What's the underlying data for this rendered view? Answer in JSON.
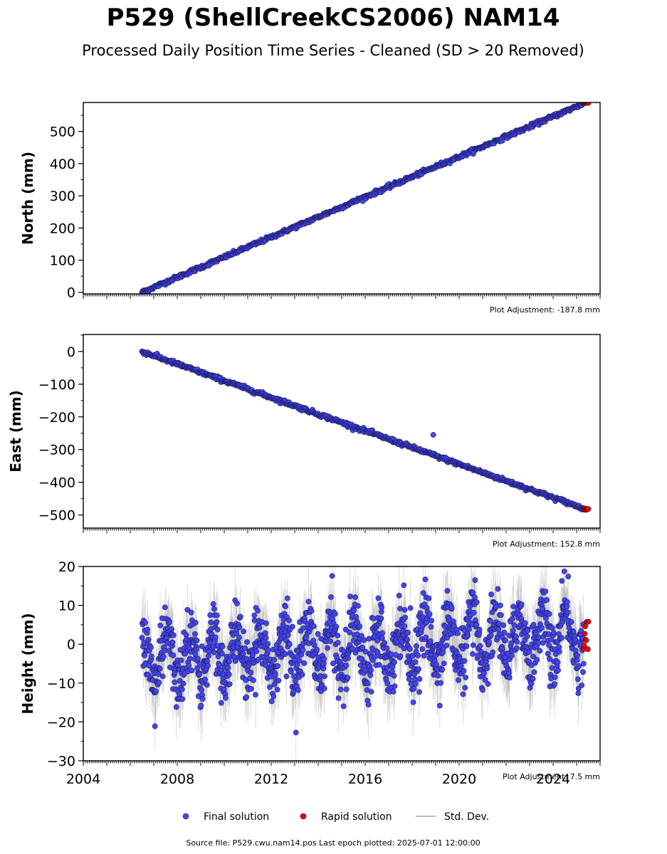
{
  "title": "P529 (ShellCreekCS2006) NAM14",
  "subtitle": "Processed Daily Position Time Series - Cleaned (SD > 20 Removed)",
  "footer": "Source file: P529.cwu.nam14.pos  Last epoch plotted: 2025-07-01 12:00:00",
  "colors": {
    "final": "#4444ee",
    "final_edge": "#1a1a55",
    "rapid": "#ee0000",
    "rapid_edge": "#550000",
    "stddev": "#bbbbbb"
  },
  "legend": {
    "final": "Final solution",
    "rapid": "Rapid solution",
    "stddev": "Std. Dev."
  },
  "chart_data": [
    {
      "type": "scatter",
      "ylabel": "North (mm)",
      "adjustment": "Plot Adjustment: -187.8 mm",
      "xlim": [
        2004,
        2026
      ],
      "ylim": [
        -5,
        590
      ],
      "yticks": [
        0,
        100,
        200,
        300,
        400,
        500
      ],
      "ytick_labels": [
        "0",
        "100",
        "200",
        "300",
        "400",
        "500"
      ],
      "final_series": {
        "start": [
          2006.5,
          0
        ],
        "end": [
          2025.3,
          587
        ],
        "scatter": 3,
        "outliers": []
      },
      "rapid_series": {
        "x_range": [
          2025.3,
          2025.5
        ],
        "y": 589
      }
    },
    {
      "type": "scatter",
      "ylabel": "East (mm)",
      "adjustment": "Plot Adjustment: 152.8 mm",
      "xlim": [
        2004,
        2026
      ],
      "ylim": [
        -540,
        52
      ],
      "yticks": [
        0,
        -100,
        -200,
        -300,
        -400,
        -500
      ],
      "ytick_labels": [
        "0",
        "−100",
        "−200",
        "−300",
        "−400",
        "−500"
      ],
      "final_series": {
        "start": [
          2006.5,
          0
        ],
        "end": [
          2025.3,
          -480
        ],
        "scatter": 3,
        "outliers": [
          [
            2018.9,
            -255
          ]
        ]
      },
      "rapid_series": {
        "x_range": [
          2025.3,
          2025.5
        ],
        "y": -482
      }
    },
    {
      "type": "scatter",
      "ylabel": "Height (mm)",
      "adjustment": "Plot Adjustment: 7.5 mm",
      "xlim": [
        2004,
        2026
      ],
      "ylim": [
        -30,
        20
      ],
      "yticks": [
        20,
        10,
        0,
        -10,
        -20,
        -30
      ],
      "ytick_labels": [
        "20",
        "10",
        "0",
        "−10",
        "−20",
        "−30"
      ],
      "xticks": [
        2004,
        2008,
        2012,
        2016,
        2020,
        2024
      ],
      "xtick_labels": [
        "2004",
        "2008",
        "2012",
        "2016",
        "2020",
        "2024"
      ],
      "final_series": {
        "x_range": [
          2006.5,
          2025.3
        ],
        "mean": -4,
        "seasonal_amplitude": 6,
        "noise": 4
      },
      "rapid_series": {
        "x_range": [
          2025.3,
          2025.5
        ],
        "y_range": [
          -1.5,
          6
        ]
      }
    }
  ]
}
